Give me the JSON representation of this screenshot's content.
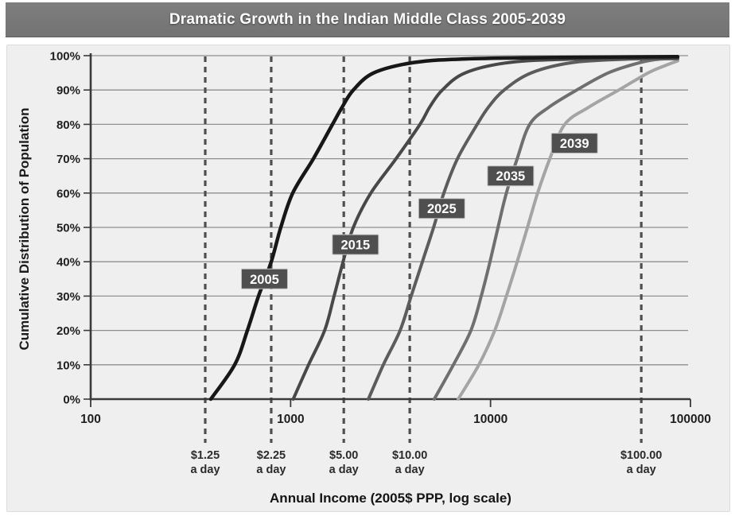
{
  "header": {
    "title": "Dramatic Growth in the Indian Middle Class 2005-2039"
  },
  "colors": {
    "title_bar_bg": "#787878",
    "title_text": "#ffffff",
    "panel_bg": "#efefef",
    "gridline": "#8f8f8f",
    "axis": "#3a3a3a",
    "tick_label": "#1f1f1f",
    "reference_line": "#4f4f4f",
    "year_box_bg": "#4f4f4f",
    "year_box_border": "#c4c4c4",
    "year_box_text": "#ffffff"
  },
  "chart_data": {
    "type": "line",
    "title": "Dramatic Growth in the Indian Middle Class 2005-2039",
    "xlabel": "Annual Income (2005$ PPP, log scale)",
    "ylabel": "Cumulative Distribution of Population",
    "x_scale": "log",
    "xlim": [
      100,
      100000
    ],
    "ylim_pct": [
      0,
      100
    ],
    "grid": "horizontal",
    "legend": "inline-year-labels",
    "x_ticks": [
      100,
      1000,
      10000,
      100000
    ],
    "x_tick_labels": [
      "100",
      "1000",
      "10000",
      "100000"
    ],
    "y_ticks_pct": [
      0,
      10,
      20,
      30,
      40,
      50,
      60,
      70,
      80,
      90,
      100
    ],
    "y_tick_labels": [
      "0%",
      "10%",
      "20%",
      "30%",
      "40%",
      "50%",
      "60%",
      "70%",
      "80%",
      "90%",
      "100%"
    ],
    "series": [
      {
        "name": "2005",
        "color": "#171717",
        "stroke_width": 4.5,
        "points": [
          [
            399,
            0
          ],
          [
            525,
            10
          ],
          [
            608,
            20
          ],
          [
            691,
            30
          ],
          [
            800,
            40
          ],
          [
            893,
            50
          ],
          [
            1025,
            60
          ],
          [
            1300,
            70
          ],
          [
            1620,
            80
          ],
          [
            1810,
            85
          ],
          [
            2060,
            90
          ],
          [
            2610,
            95
          ],
          [
            4130,
            98
          ],
          [
            7150,
            99
          ],
          [
            21500,
            99.5
          ],
          [
            86400,
            99.7
          ]
        ]
      },
      {
        "name": "2015",
        "color": "#484848",
        "stroke_width": 4,
        "points": [
          [
            1030,
            0
          ],
          [
            1230,
            10
          ],
          [
            1480,
            20
          ],
          [
            1650,
            30
          ],
          [
            1830,
            40
          ],
          [
            2060,
            50
          ],
          [
            2520,
            60
          ],
          [
            3370,
            70
          ],
          [
            4440,
            80
          ],
          [
            4960,
            85
          ],
          [
            5740,
            90
          ],
          [
            7480,
            95
          ],
          [
            12400,
            98
          ],
          [
            25800,
            99
          ],
          [
            86400,
            99.3
          ]
        ]
      },
      {
        "name": "2025",
        "color": "#5c5c5c",
        "stroke_width": 4,
        "points": [
          [
            2450,
            0
          ],
          [
            2910,
            10
          ],
          [
            3530,
            20
          ],
          [
            4010,
            30
          ],
          [
            4560,
            40
          ],
          [
            5190,
            50
          ],
          [
            5840,
            60
          ],
          [
            6830,
            70
          ],
          [
            8580,
            80
          ],
          [
            9760,
            85
          ],
          [
            11700,
            90
          ],
          [
            16000,
            95
          ],
          [
            25800,
            98
          ],
          [
            49000,
            99
          ],
          [
            86400,
            99.2
          ]
        ]
      },
      {
        "name": "2035",
        "color": "#6f6f6f",
        "stroke_width": 4,
        "points": [
          [
            5230,
            0
          ],
          [
            6520,
            10
          ],
          [
            7980,
            20
          ],
          [
            8990,
            30
          ],
          [
            9940,
            40
          ],
          [
            10900,
            50
          ],
          [
            12000,
            60
          ],
          [
            13600,
            70
          ],
          [
            15700,
            80
          ],
          [
            19600,
            85
          ],
          [
            27000,
            90
          ],
          [
            38900,
            95
          ],
          [
            56200,
            98
          ],
          [
            70600,
            99
          ],
          [
            86400,
            99.1
          ]
        ]
      },
      {
        "name": "2039",
        "color": "#a4a4a4",
        "stroke_width": 4,
        "points": [
          [
            6890,
            0
          ],
          [
            8740,
            10
          ],
          [
            10500,
            20
          ],
          [
            12000,
            30
          ],
          [
            13600,
            40
          ],
          [
            15300,
            50
          ],
          [
            17200,
            60
          ],
          [
            19800,
            70
          ],
          [
            23500,
            80
          ],
          [
            31000,
            85
          ],
          [
            43800,
            90
          ],
          [
            61500,
            95
          ],
          [
            73900,
            97
          ],
          [
            86400,
            98.5
          ]
        ]
      }
    ],
    "year_labels": [
      {
        "text": "2005",
        "income": 740,
        "pct": 35
      },
      {
        "text": "2015",
        "income": 2110,
        "pct": 45
      },
      {
        "text": "2025",
        "income": 5700,
        "pct": 55.5
      },
      {
        "text": "2035",
        "income": 12600,
        "pct": 65
      },
      {
        "text": "2039",
        "income": 26300,
        "pct": 74.5
      }
    ],
    "reference_lines": [
      {
        "label_line1": "$1.25",
        "label_line2": "a day",
        "axis_fraction": 0.191
      },
      {
        "label_line1": "$2.25",
        "label_line2": "a day",
        "axis_fraction": 0.301
      },
      {
        "label_line1": "$5.00",
        "label_line2": "a day",
        "axis_fraction": 0.422
      },
      {
        "label_line1": "$10.00",
        "label_line2": "a day",
        "axis_fraction": 0.532
      },
      {
        "label_line1": "$100.00",
        "label_line2": "a day",
        "axis_fraction": 0.918
      }
    ]
  }
}
